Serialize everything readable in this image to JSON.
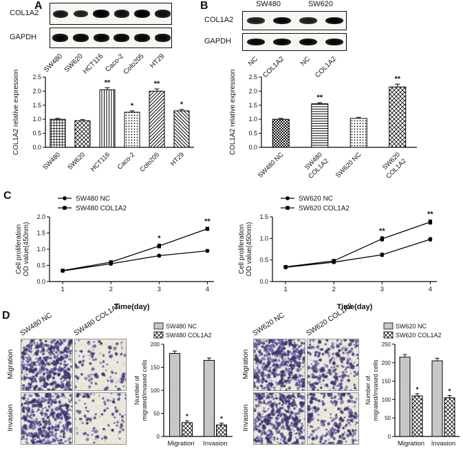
{
  "colors": {
    "background": "#ffffff",
    "band_black": "#111111",
    "stain_purple": "#5d5296",
    "nc_bar_gray": "#cbcbcb"
  },
  "panels": {
    "A": {
      "label": "A",
      "blot": {
        "row_labels": [
          "COL1A2",
          "GAPDH"
        ],
        "lanes": [
          "SW480",
          "SW620",
          "HCT116",
          "Caco-2",
          "Colo205",
          "HT29"
        ],
        "band_intensity": [
          [
            0.8,
            0.72,
            1.0,
            0.85,
            1.0,
            0.88
          ],
          [
            0.95,
            0.95,
            0.95,
            0.95,
            0.95,
            0.95
          ]
        ]
      }
    },
    "B": {
      "label": "B",
      "blot": {
        "group_labels": [
          "SW480",
          "SW620"
        ],
        "row_labels": [
          "COL1A2",
          "GAPDH"
        ],
        "lanes": [
          "NC",
          "COL1A2",
          "NC",
          "COL1A2"
        ],
        "band_intensity": [
          [
            0.75,
            0.95,
            0.75,
            1.0
          ],
          [
            0.95,
            0.95,
            0.95,
            0.95
          ]
        ]
      }
    },
    "C": {
      "label": "C"
    },
    "D": {
      "label": "D",
      "left": {
        "col_labels": [
          "SW480 NC",
          "SW480 COL1A2"
        ],
        "row_labels": [
          "Migration",
          "Invasion"
        ],
        "densities": [
          [
            0.95,
            0.12
          ],
          [
            0.88,
            0.1
          ]
        ]
      },
      "right": {
        "col_labels": [
          "SW620 NC",
          "SW620 COL1A2"
        ],
        "row_labels": [
          "Migration",
          "Invasion"
        ],
        "densities": [
          [
            1.0,
            0.5
          ],
          [
            0.92,
            0.45
          ]
        ]
      }
    }
  },
  "chart_data": [
    {
      "id": "panelA-bar",
      "type": "bar",
      "categories": [
        "SW480",
        "SW620",
        "HCT116",
        "Caco-2",
        "Colo205",
        "HT29"
      ],
      "values": [
        1.0,
        0.95,
        2.05,
        1.25,
        2.0,
        1.3
      ],
      "errors": [
        0.03,
        0.04,
        0.07,
        0.05,
        0.08,
        0.05
      ],
      "significance": [
        "",
        "",
        "**",
        "*",
        "**",
        "*"
      ],
      "patterns": [
        "p-grid",
        "p-cross",
        "p-vert",
        "p-dots",
        "p-diag",
        "p-rdiag"
      ],
      "ylabel": "COL1A2 relative expression",
      "ylim": [
        0,
        2.5
      ],
      "yticks": [
        0,
        0.5,
        1,
        1.5,
        2,
        2.5
      ]
    },
    {
      "id": "panelB-bar",
      "type": "bar",
      "categories": [
        "SW480 NC",
        "SW480 COL1A2",
        "SW620 NC",
        "SW620 COL1A2"
      ],
      "category_lines": [
        [
          "SW480 NC"
        ],
        [
          "SW480",
          "COL1A2"
        ],
        [
          "SW620 NC"
        ],
        [
          "SW620",
          "COL1A2"
        ]
      ],
      "values": [
        1.0,
        1.55,
        1.03,
        2.15
      ],
      "errors": [
        0.03,
        0.04,
        0.04,
        0.1
      ],
      "significance": [
        "",
        "**",
        "",
        "**"
      ],
      "patterns": [
        "p-checker",
        "p-horiz",
        "p-dots",
        "p-cross"
      ],
      "ylabel": "COL1A2 relative expression",
      "ylim": [
        0,
        2.5
      ],
      "yticks": [
        0,
        0.5,
        1,
        1.5,
        2,
        2.5
      ]
    },
    {
      "id": "panelC-left-line",
      "type": "line",
      "x": [
        1,
        2,
        3,
        4
      ],
      "xlabel": "Time(day)",
      "ylabel": "Cell proliferation\nOD value(450nm)",
      "ylim": [
        0,
        2.0
      ],
      "yticks": [
        0,
        0.5,
        1,
        1.5,
        2
      ],
      "series": [
        {
          "name": "SW480 NC",
          "marker": "circle",
          "values": [
            0.33,
            0.55,
            0.8,
            0.95
          ],
          "errors": [
            0.02,
            0.03,
            0.04,
            0.04
          ]
        },
        {
          "name": "SW480 COL1A2",
          "marker": "square",
          "values": [
            0.34,
            0.6,
            1.1,
            1.63
          ],
          "errors": [
            0.02,
            0.03,
            0.06,
            0.05
          ]
        }
      ],
      "annotations": [
        {
          "x": 3,
          "text": "*"
        },
        {
          "x": 4,
          "text": "**"
        }
      ]
    },
    {
      "id": "panelC-right-line",
      "type": "line",
      "x": [
        1,
        2,
        3,
        4
      ],
      "xlabel": "Time(day)",
      "ylabel": "Cell proliferation\nOD value(450nm)",
      "ylim": [
        0,
        1.5
      ],
      "yticks": [
        0,
        0.5,
        1,
        1.5
      ],
      "series": [
        {
          "name": "SW620 NC",
          "marker": "circle",
          "values": [
            0.33,
            0.45,
            0.62,
            0.98
          ],
          "errors": [
            0.02,
            0.03,
            0.04,
            0.04
          ]
        },
        {
          "name": "SW620 COL1A2",
          "marker": "square",
          "values": [
            0.34,
            0.48,
            0.99,
            1.38
          ],
          "errors": [
            0.02,
            0.03,
            0.05,
            0.05
          ]
        }
      ],
      "annotations": [
        {
          "x": 3,
          "text": "**"
        },
        {
          "x": 4,
          "text": "**"
        }
      ]
    },
    {
      "id": "panelD-left-bar",
      "type": "grouped-bar",
      "categories": [
        "Migration",
        "Invasion"
      ],
      "ylabel": "Number of\nmigrated/invased cells",
      "ylim": [
        0,
        200
      ],
      "yticks": [
        0,
        50,
        100,
        150,
        200
      ],
      "series": [
        {
          "name": "SW480 NC",
          "pattern": "p-gray",
          "values": [
            180,
            165
          ],
          "errors": [
            5,
            5
          ],
          "significance": [
            "",
            ""
          ]
        },
        {
          "name": "SW480 COL1A2",
          "pattern": "p-cross",
          "values": [
            30,
            25
          ],
          "errors": [
            4,
            4
          ],
          "significance": [
            "*",
            "*"
          ]
        }
      ]
    },
    {
      "id": "panelD-right-bar",
      "type": "grouped-bar",
      "categories": [
        "Migration",
        "Invasion"
      ],
      "ylabel": "Number of\nmigrated/invased cells",
      "ylim": [
        0,
        250
      ],
      "yticks": [
        0,
        50,
        100,
        150,
        200,
        250
      ],
      "series": [
        {
          "name": "SW620 NC",
          "pattern": "p-gray",
          "values": [
            215,
            205
          ],
          "errors": [
            7,
            7
          ],
          "significance": [
            "",
            ""
          ]
        },
        {
          "name": "SW620 COL1A2",
          "pattern": "p-cross",
          "values": [
            110,
            105
          ],
          "errors": [
            6,
            6
          ],
          "significance": [
            "*",
            "*"
          ]
        }
      ]
    }
  ]
}
